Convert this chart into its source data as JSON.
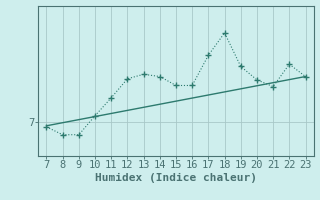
{
  "x": [
    7,
    8,
    9,
    10,
    11,
    12,
    13,
    14,
    15,
    16,
    17,
    18,
    19,
    20,
    21,
    22,
    23
  ],
  "y_main": [
    6.8,
    6.45,
    6.45,
    7.3,
    8.1,
    8.95,
    9.15,
    9.05,
    8.65,
    8.65,
    10.0,
    11.0,
    9.5,
    8.9,
    8.6,
    9.6,
    9.05
  ],
  "y_trend_x": [
    7,
    23
  ],
  "y_trend_y": [
    6.85,
    9.05
  ],
  "xlabel": "Humidex (Indice chaleur)",
  "ytick_label": "7",
  "ytick_value": 7.0,
  "xlim": [
    6.5,
    23.5
  ],
  "ylim": [
    5.5,
    12.2
  ],
  "line_color": "#2d7a6e",
  "bg_color": "#ceeeed",
  "grid_color": "#a8c8c8",
  "axis_color": "#4a7272",
  "xlabel_fontsize": 8,
  "tick_fontsize": 7.5
}
